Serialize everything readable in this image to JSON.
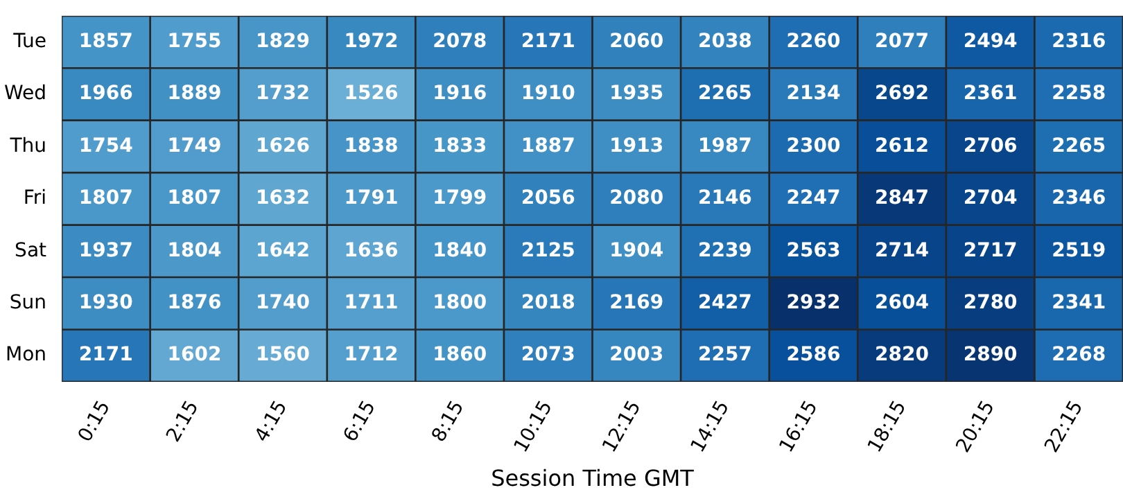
{
  "chart_data": {
    "type": "heatmap",
    "xlabel": "Session Time GMT",
    "categories": [
      "0:15",
      "2:15",
      "4:15",
      "6:15",
      "8:15",
      "10:15",
      "12:15",
      "14:15",
      "16:15",
      "18:15",
      "20:15",
      "22:15"
    ],
    "y_categories": [
      "Tue",
      "Wed",
      "Thu",
      "Fri",
      "Sat",
      "Sun",
      "Mon"
    ],
    "cells": [
      [
        1857,
        1755,
        1829,
        1972,
        2078,
        2171,
        2060,
        2038,
        2260,
        2077,
        2494,
        2316
      ],
      [
        1966,
        1889,
        1732,
        1526,
        1916,
        1910,
        1935,
        2265,
        2134,
        2692,
        2361,
        2258
      ],
      [
        1754,
        1749,
        1626,
        1838,
        1833,
        1887,
        1913,
        1987,
        2300,
        2612,
        2706,
        2265
      ],
      [
        1807,
        1807,
        1632,
        1791,
        1799,
        2056,
        2080,
        2146,
        2247,
        2847,
        2704,
        2346
      ],
      [
        1937,
        1804,
        1642,
        1636,
        1840,
        2125,
        1904,
        2239,
        2563,
        2714,
        2717,
        2519
      ],
      [
        1930,
        1876,
        1740,
        1711,
        1800,
        2018,
        2169,
        2427,
        2932,
        2604,
        2780,
        2341
      ],
      [
        2171,
        1602,
        1560,
        1712,
        1860,
        2073,
        2003,
        2257,
        2586,
        2820,
        2890,
        2268
      ]
    ],
    "data_labels": true
  }
}
